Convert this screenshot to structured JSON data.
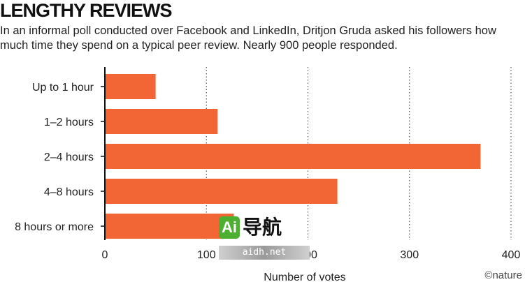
{
  "chart_data": {
    "type": "bar",
    "orientation": "horizontal",
    "title": "LENGTHY REVIEWS",
    "subtitle": "In an informal poll conducted over Facebook and LinkedIn, Dritjon Gruda asked his followers how much time they spend on a typical peer review. Nearly 900 people responded.",
    "categories": [
      "Up to 1 hour",
      "1–2 hours",
      "2–4 hours",
      "4–8 hours",
      "8 hours or more"
    ],
    "values": [
      50,
      111,
      370,
      229,
      127
    ],
    "xlabel": "Number of votes",
    "xlim": [
      0,
      400
    ],
    "xticks": [
      "0",
      "100",
      "200",
      "300",
      "400"
    ],
    "grid": "vertical dotted",
    "bar_color": "#f26535"
  },
  "credit": "©nature",
  "watermark": {
    "badge": "Ai",
    "name": "导航",
    "url": "aidh.net"
  }
}
